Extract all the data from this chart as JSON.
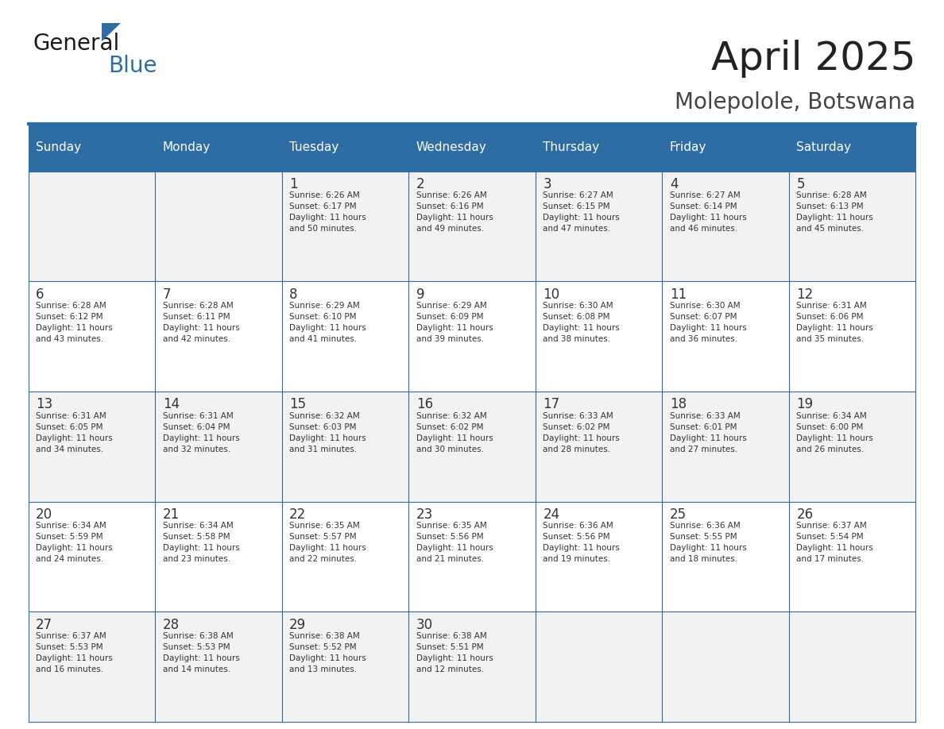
{
  "title": "April 2025",
  "subtitle": "Molepolole, Botswana",
  "header_bg_color": "#2E6DA4",
  "header_text_color": "#FFFFFF",
  "odd_row_bg": "#F2F2F2",
  "even_row_bg": "#FFFFFF",
  "text_color": "#333333",
  "day_headers": [
    "Sunday",
    "Monday",
    "Tuesday",
    "Wednesday",
    "Thursday",
    "Friday",
    "Saturday"
  ],
  "title_color": "#222222",
  "subtitle_color": "#444444",
  "line_color": "#2E6DA4",
  "cell_text_color": "#333333",
  "days": [
    {
      "day": null,
      "info": null
    },
    {
      "day": null,
      "info": null
    },
    {
      "day": 1,
      "info": "Sunrise: 6:26 AM\nSunset: 6:17 PM\nDaylight: 11 hours\nand 50 minutes."
    },
    {
      "day": 2,
      "info": "Sunrise: 6:26 AM\nSunset: 6:16 PM\nDaylight: 11 hours\nand 49 minutes."
    },
    {
      "day": 3,
      "info": "Sunrise: 6:27 AM\nSunset: 6:15 PM\nDaylight: 11 hours\nand 47 minutes."
    },
    {
      "day": 4,
      "info": "Sunrise: 6:27 AM\nSunset: 6:14 PM\nDaylight: 11 hours\nand 46 minutes."
    },
    {
      "day": 5,
      "info": "Sunrise: 6:28 AM\nSunset: 6:13 PM\nDaylight: 11 hours\nand 45 minutes."
    },
    {
      "day": 6,
      "info": "Sunrise: 6:28 AM\nSunset: 6:12 PM\nDaylight: 11 hours\nand 43 minutes."
    },
    {
      "day": 7,
      "info": "Sunrise: 6:28 AM\nSunset: 6:11 PM\nDaylight: 11 hours\nand 42 minutes."
    },
    {
      "day": 8,
      "info": "Sunrise: 6:29 AM\nSunset: 6:10 PM\nDaylight: 11 hours\nand 41 minutes."
    },
    {
      "day": 9,
      "info": "Sunrise: 6:29 AM\nSunset: 6:09 PM\nDaylight: 11 hours\nand 39 minutes."
    },
    {
      "day": 10,
      "info": "Sunrise: 6:30 AM\nSunset: 6:08 PM\nDaylight: 11 hours\nand 38 minutes."
    },
    {
      "day": 11,
      "info": "Sunrise: 6:30 AM\nSunset: 6:07 PM\nDaylight: 11 hours\nand 36 minutes."
    },
    {
      "day": 12,
      "info": "Sunrise: 6:31 AM\nSunset: 6:06 PM\nDaylight: 11 hours\nand 35 minutes."
    },
    {
      "day": 13,
      "info": "Sunrise: 6:31 AM\nSunset: 6:05 PM\nDaylight: 11 hours\nand 34 minutes."
    },
    {
      "day": 14,
      "info": "Sunrise: 6:31 AM\nSunset: 6:04 PM\nDaylight: 11 hours\nand 32 minutes."
    },
    {
      "day": 15,
      "info": "Sunrise: 6:32 AM\nSunset: 6:03 PM\nDaylight: 11 hours\nand 31 minutes."
    },
    {
      "day": 16,
      "info": "Sunrise: 6:32 AM\nSunset: 6:02 PM\nDaylight: 11 hours\nand 30 minutes."
    },
    {
      "day": 17,
      "info": "Sunrise: 6:33 AM\nSunset: 6:02 PM\nDaylight: 11 hours\nand 28 minutes."
    },
    {
      "day": 18,
      "info": "Sunrise: 6:33 AM\nSunset: 6:01 PM\nDaylight: 11 hours\nand 27 minutes."
    },
    {
      "day": 19,
      "info": "Sunrise: 6:34 AM\nSunset: 6:00 PM\nDaylight: 11 hours\nand 26 minutes."
    },
    {
      "day": 20,
      "info": "Sunrise: 6:34 AM\nSunset: 5:59 PM\nDaylight: 11 hours\nand 24 minutes."
    },
    {
      "day": 21,
      "info": "Sunrise: 6:34 AM\nSunset: 5:58 PM\nDaylight: 11 hours\nand 23 minutes."
    },
    {
      "day": 22,
      "info": "Sunrise: 6:35 AM\nSunset: 5:57 PM\nDaylight: 11 hours\nand 22 minutes."
    },
    {
      "day": 23,
      "info": "Sunrise: 6:35 AM\nSunset: 5:56 PM\nDaylight: 11 hours\nand 21 minutes."
    },
    {
      "day": 24,
      "info": "Sunrise: 6:36 AM\nSunset: 5:56 PM\nDaylight: 11 hours\nand 19 minutes."
    },
    {
      "day": 25,
      "info": "Sunrise: 6:36 AM\nSunset: 5:55 PM\nDaylight: 11 hours\nand 18 minutes."
    },
    {
      "day": 26,
      "info": "Sunrise: 6:37 AM\nSunset: 5:54 PM\nDaylight: 11 hours\nand 17 minutes."
    },
    {
      "day": 27,
      "info": "Sunrise: 6:37 AM\nSunset: 5:53 PM\nDaylight: 11 hours\nand 16 minutes."
    },
    {
      "day": 28,
      "info": "Sunrise: 6:38 AM\nSunset: 5:53 PM\nDaylight: 11 hours\nand 14 minutes."
    },
    {
      "day": 29,
      "info": "Sunrise: 6:38 AM\nSunset: 5:52 PM\nDaylight: 11 hours\nand 13 minutes."
    },
    {
      "day": 30,
      "info": "Sunrise: 6:38 AM\nSunset: 5:51 PM\nDaylight: 11 hours\nand 12 minutes."
    },
    {
      "day": null,
      "info": null
    },
    {
      "day": null,
      "info": null
    },
    {
      "day": null,
      "info": null
    }
  ]
}
